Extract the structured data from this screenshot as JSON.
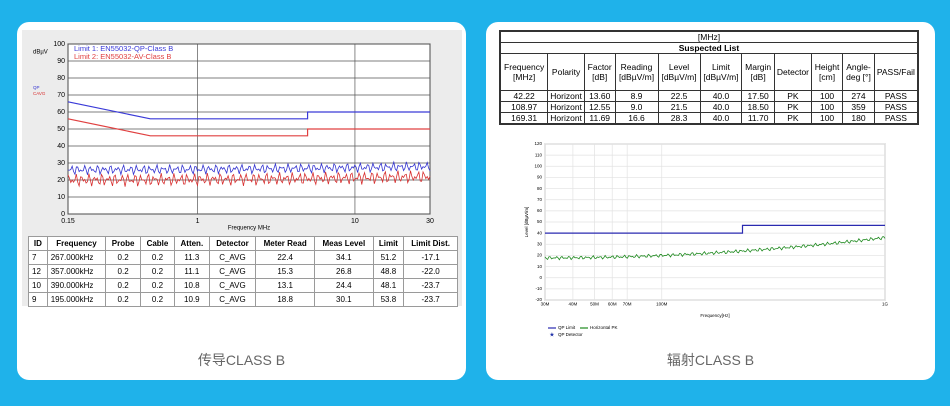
{
  "left": {
    "plot": {
      "y_unit": "dBµV",
      "side_labels": [
        "QP",
        "CAVG"
      ],
      "xlabel": "Frequency MHz",
      "xlim": [
        0.15,
        30
      ],
      "ylim": [
        0,
        100
      ],
      "xticks": [
        0.15,
        1,
        10,
        30
      ],
      "yticks": [
        0,
        10,
        20,
        30,
        40,
        50,
        60,
        70,
        80,
        90,
        100
      ],
      "series": [
        {
          "name": "Limit 1: EN55032-QP-Class B",
          "color": "#3a3ad8",
          "x": [
            0.15,
            0.5,
            0.5,
            5,
            5,
            30
          ],
          "values": [
            66,
            56,
            56,
            56,
            60,
            60
          ]
        },
        {
          "name": "Limit 2: EN55032-AV-Class B",
          "color": "#e04040",
          "x": [
            0.15,
            0.5,
            0.5,
            5,
            5,
            30
          ],
          "values": [
            56,
            46,
            46,
            46,
            50,
            50
          ]
        }
      ]
    },
    "table": {
      "header": [
        "ID",
        "Frequency",
        "Probe",
        "Cable",
        "Atten.",
        "Detector",
        "Meter Read",
        "Meas Level",
        "Limit",
        "Limit Dist."
      ],
      "rows": [
        [
          "7",
          "267.000kHz",
          "0.2",
          "0.2",
          "11.3",
          "C_AVG",
          "22.4",
          "34.1",
          "51.2",
          "-17.1"
        ],
        [
          "12",
          "357.000kHz",
          "0.2",
          "0.2",
          "11.1",
          "C_AVG",
          "15.3",
          "26.8",
          "48.8",
          "-22.0"
        ],
        [
          "10",
          "390.000kHz",
          "0.2",
          "0.2",
          "10.8",
          "C_AVG",
          "13.1",
          "24.4",
          "48.1",
          "-23.7"
        ],
        [
          "9",
          "195.000kHz",
          "0.2",
          "0.2",
          "10.9",
          "C_AVG",
          "18.8",
          "30.1",
          "53.8",
          "-23.7"
        ]
      ]
    },
    "caption": "传导CLASS B"
  },
  "right": {
    "table": {
      "unit": "[MHz]",
      "title": "Suspected List",
      "header": [
        "Frequency [MHz]",
        "Polarity",
        "Factor [dB]",
        "Reading [dBµV/m]",
        "Level [dBµV/m]",
        "Limit [dBµV/m]",
        "Margin [dB]",
        "Detector",
        "Height [cm]",
        "Angle-deg [°]",
        "PASS/Fail"
      ],
      "rows": [
        [
          "42.22",
          "Horizont",
          "13.60",
          "8.9",
          "22.5",
          "40.0",
          "17.50",
          "PK",
          "100",
          "274",
          "PASS"
        ],
        [
          "108.97",
          "Horizont",
          "12.55",
          "9.0",
          "21.5",
          "40.0",
          "18.50",
          "PK",
          "100",
          "359",
          "PASS"
        ],
        [
          "169.31",
          "Horizont",
          "11.69",
          "16.6",
          "28.3",
          "40.0",
          "11.70",
          "PK",
          "100",
          "180",
          "PASS"
        ]
      ]
    },
    "plot": {
      "ylabel": "Level [dBµV/m]",
      "xlabel": "Frequency[Hz]",
      "xlim": [
        30,
        1000
      ],
      "ylim": [
        -20,
        120
      ],
      "xticks": [
        {
          "value": 30,
          "label": "30M"
        },
        {
          "value": 40,
          "label": "40M"
        },
        {
          "value": 50,
          "label": "50M"
        },
        {
          "value": 60,
          "label": "60M"
        },
        {
          "value": 70,
          "label": "70M"
        },
        {
          "value": 100,
          "label": "100M"
        },
        {
          "value": 1000,
          "label": "1G"
        }
      ],
      "yticks": [
        -20,
        -10,
        0,
        10,
        20,
        30,
        40,
        50,
        60,
        70,
        80,
        90,
        100,
        110,
        120
      ],
      "series": [
        {
          "name": "QP Limit",
          "color": "#2a2ab0",
          "x": [
            30,
            230,
            230,
            1000
          ],
          "values": [
            40,
            40,
            47,
            47
          ]
        }
      ],
      "legend": [
        {
          "name": "Horizontal PK",
          "color": "#1f8a1f"
        },
        {
          "name": "QP Detector",
          "color": "#2233aa"
        }
      ]
    },
    "caption": "辐射CLASS B"
  }
}
